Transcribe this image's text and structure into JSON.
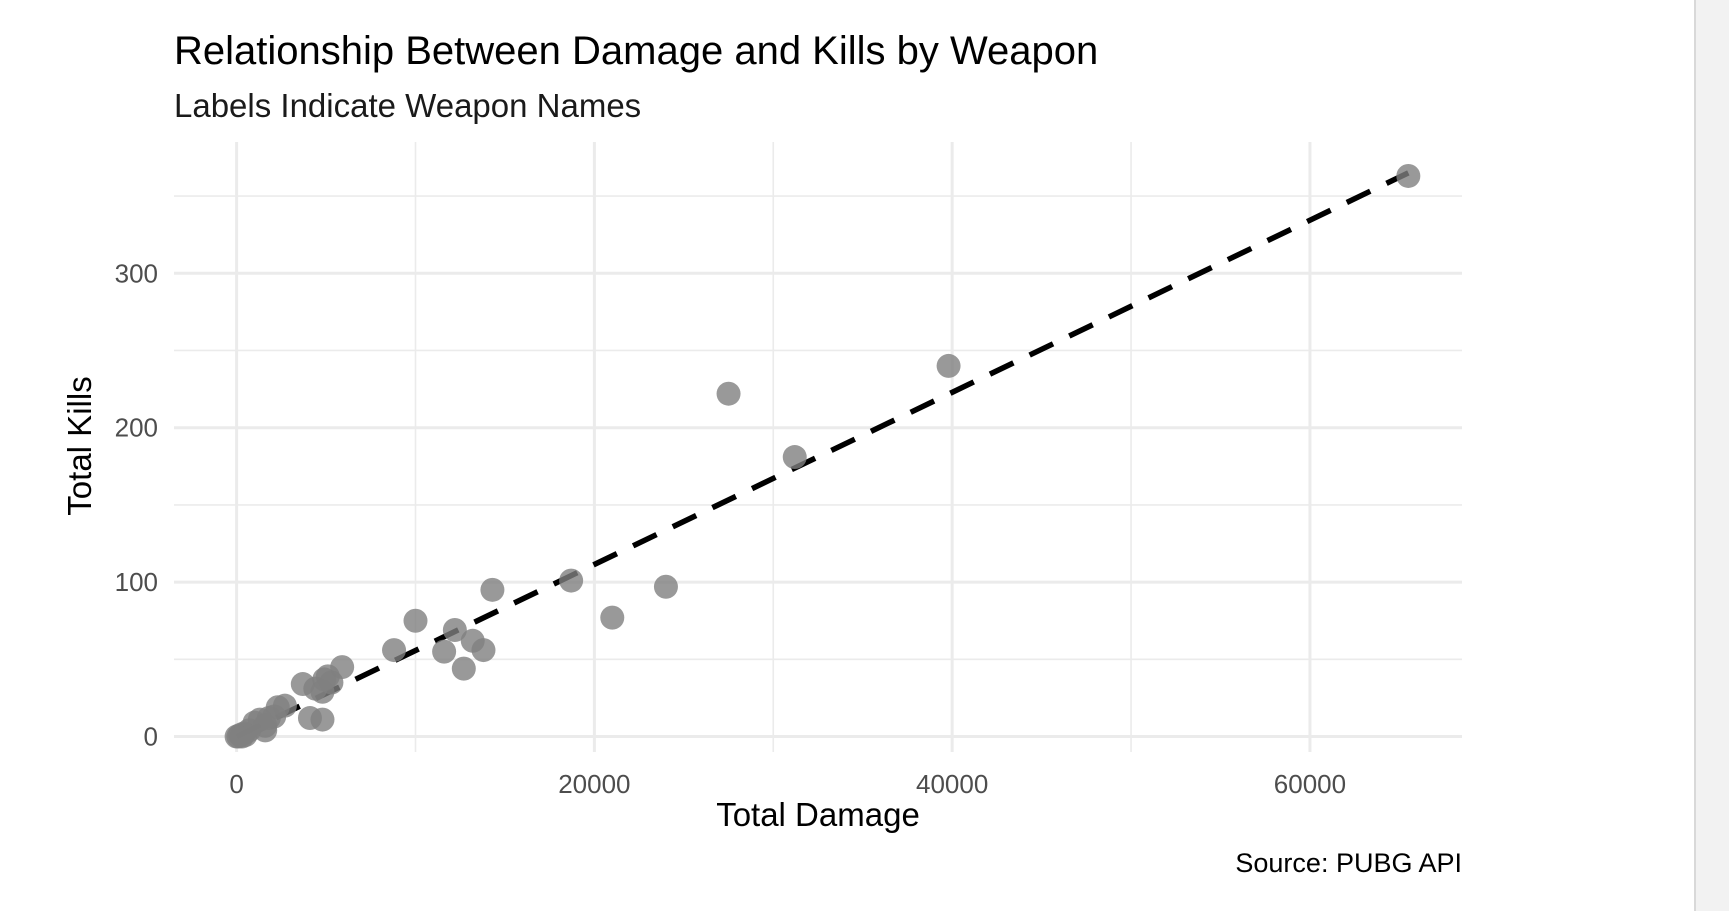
{
  "chart_data": {
    "type": "scatter",
    "title": "Relationship Between Damage and Kills by Weapon",
    "subtitle": "Labels Indicate Weapon Names",
    "xlabel": "Total Damage",
    "ylabel": "Total Kills",
    "caption": "Source: PUBG API",
    "xlim": [
      -3500,
      68500
    ],
    "ylim": [
      -10,
      385
    ],
    "x_ticks": [
      0,
      20000,
      40000,
      60000
    ],
    "x_tick_labels": [
      "0",
      "20000",
      "40000",
      "60000"
    ],
    "y_ticks": [
      0,
      100,
      200,
      300
    ],
    "y_tick_labels": [
      "0",
      "100",
      "200",
      "300"
    ],
    "grid": true,
    "point_color": "#808080",
    "trend_line": {
      "style": "dashed",
      "color": "#000000",
      "x": [
        0,
        65500
      ],
      "y": [
        0,
        365
      ]
    },
    "points": [
      {
        "x": 65500,
        "y": 363
      },
      {
        "x": 39800,
        "y": 240
      },
      {
        "x": 27500,
        "y": 222
      },
      {
        "x": 31200,
        "y": 181
      },
      {
        "x": 18700,
        "y": 101
      },
      {
        "x": 24000,
        "y": 97
      },
      {
        "x": 21000,
        "y": 77
      },
      {
        "x": 14300,
        "y": 95
      },
      {
        "x": 10000,
        "y": 75
      },
      {
        "x": 12200,
        "y": 69
      },
      {
        "x": 13200,
        "y": 62
      },
      {
        "x": 13800,
        "y": 56
      },
      {
        "x": 11600,
        "y": 55
      },
      {
        "x": 8800,
        "y": 56
      },
      {
        "x": 12700,
        "y": 44
      },
      {
        "x": 5900,
        "y": 45
      },
      {
        "x": 5100,
        "y": 39
      },
      {
        "x": 4900,
        "y": 37
      },
      {
        "x": 5300,
        "y": 35
      },
      {
        "x": 3700,
        "y": 34
      },
      {
        "x": 4400,
        "y": 31
      },
      {
        "x": 4800,
        "y": 29
      },
      {
        "x": 2700,
        "y": 20
      },
      {
        "x": 2300,
        "y": 19
      },
      {
        "x": 2100,
        "y": 13
      },
      {
        "x": 4100,
        "y": 12
      },
      {
        "x": 4800,
        "y": 11
      },
      {
        "x": 1800,
        "y": 12
      },
      {
        "x": 1300,
        "y": 11
      },
      {
        "x": 1000,
        "y": 9
      },
      {
        "x": 1600,
        "y": 7
      },
      {
        "x": 1600,
        "y": 4
      },
      {
        "x": 700,
        "y": 4
      },
      {
        "x": 400,
        "y": 2
      },
      {
        "x": 200,
        "y": 1
      },
      {
        "x": 100,
        "y": 0
      },
      {
        "x": 0,
        "y": 0
      },
      {
        "x": 300,
        "y": 0
      },
      {
        "x": 500,
        "y": 1
      }
    ]
  }
}
